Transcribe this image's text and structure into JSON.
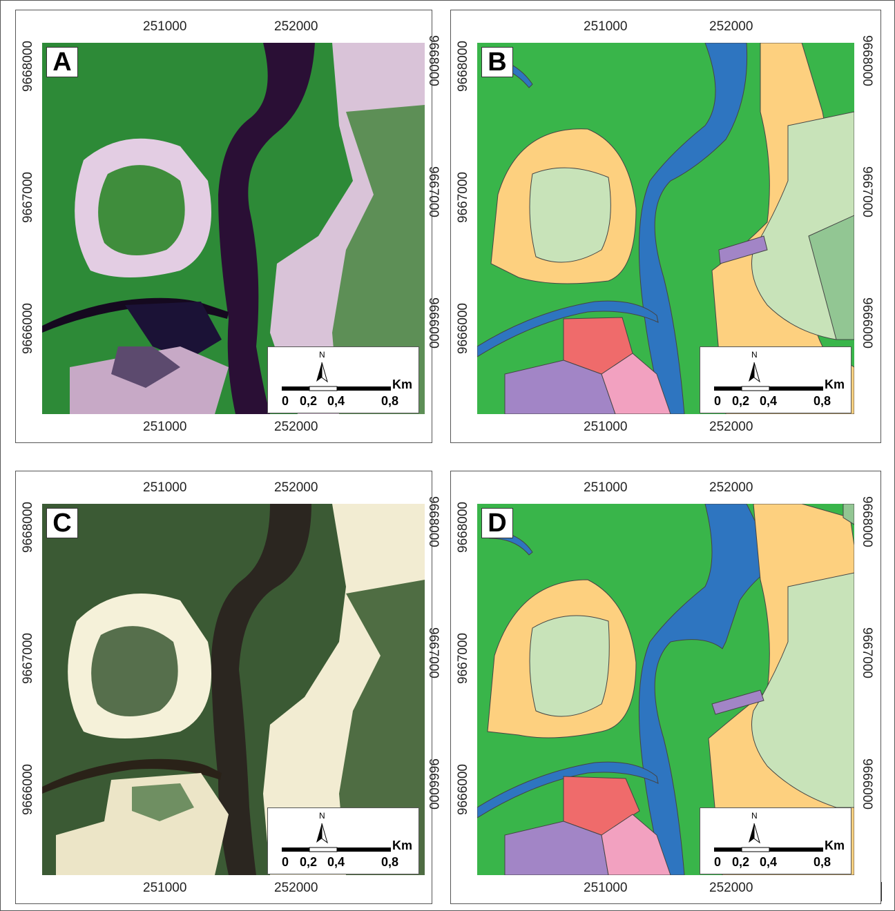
{
  "panels": [
    {
      "letter": "A",
      "kind": "satellite-false-color"
    },
    {
      "letter": "B",
      "kind": "classification"
    },
    {
      "letter": "C",
      "kind": "satellite-natural-color"
    },
    {
      "letter": "D",
      "kind": "classification"
    }
  ],
  "axis": {
    "x_ticks": [
      "251000",
      "252000"
    ],
    "y_ticks": [
      "9668000",
      "9667000",
      "9666000"
    ]
  },
  "scale": {
    "north": "N",
    "unit": "Km",
    "label_0": "0",
    "label_02": "0,2",
    "label_04": "0,4",
    "label_08": "0,8"
  },
  "colors": {
    "mangrove": "#39b54a",
    "water": "#2e75c0",
    "sand": "#fdd07f",
    "light_vegetation": "#c8e3b9",
    "dense_vegetation": "#92c693",
    "urban_red": "#ef6b6b",
    "urban_pink": "#f2a1c0",
    "salt_ponds": "#a285c6"
  }
}
